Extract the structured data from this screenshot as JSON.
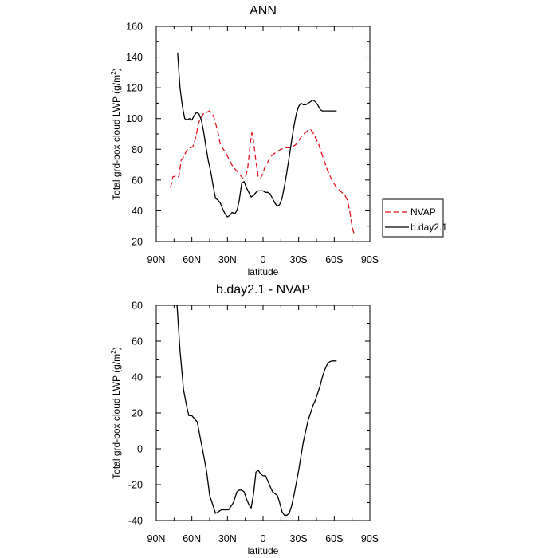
{
  "chart_data": [
    {
      "type": "line",
      "title": "ANN",
      "xlabel": "latitude",
      "ylabel": "Total grd-box cloud LWP (g/m",
      "ylabel_sup": "2",
      "ylabel_end": ")",
      "xlim": [
        90,
        -90
      ],
      "ylim": [
        20,
        160
      ],
      "xticks": [
        {
          "value": 90,
          "label": "90N"
        },
        {
          "value": 60,
          "label": "60N"
        },
        {
          "value": 30,
          "label": "30N"
        },
        {
          "value": 0,
          "label": "0"
        },
        {
          "value": -30,
          "label": "30S"
        },
        {
          "value": -60,
          "label": "60S"
        },
        {
          "value": -90,
          "label": "90S"
        }
      ],
      "yticks": [
        20,
        40,
        60,
        80,
        100,
        120,
        140,
        160
      ],
      "grid": false,
      "legend_position": "right",
      "series": [
        {
          "name": "NVAP",
          "color": "#e8141e",
          "dash": "dashed",
          "x": [
            78,
            76,
            73,
            71,
            69,
            67,
            65,
            63,
            61,
            59,
            56.6,
            54.5,
            52.6,
            50.5,
            47.5,
            45,
            42,
            40,
            38,
            36,
            33.5,
            31.5,
            29,
            25,
            22,
            19,
            17,
            15,
            13,
            11,
            9.5,
            8,
            6,
            4,
            2,
            0,
            -1.4,
            -3.6,
            -6,
            -9,
            -11,
            -13,
            -15,
            -19,
            -24,
            -27.5,
            -30,
            -32,
            -34,
            -36,
            -37.5,
            -40,
            -42,
            -44.5,
            -47,
            -50,
            -54,
            -58,
            -62,
            -65,
            -69,
            -71,
            -73,
            -75,
            -77
          ],
          "y": [
            55,
            62,
            63,
            62,
            73,
            75,
            78,
            81,
            81,
            82,
            88,
            97,
            100,
            103,
            104,
            105,
            102,
            97,
            91,
            83,
            80,
            78,
            74,
            68,
            66,
            63,
            61,
            62,
            67,
            82,
            91,
            85,
            72,
            62,
            61,
            65,
            68,
            71,
            75,
            77,
            78,
            79,
            80,
            81,
            81,
            83,
            85,
            88,
            90,
            91,
            92,
            93,
            91,
            87,
            83,
            76,
            67,
            60,
            55,
            53,
            50,
            47,
            40,
            30,
            24
          ]
        },
        {
          "name": "b.day2.1",
          "color": "#000000",
          "dash": "solid",
          "x": [
            72,
            70,
            68,
            66,
            64,
            62,
            60,
            58,
            56,
            54,
            52,
            50,
            48,
            46,
            44,
            42,
            40,
            38,
            36,
            34,
            32,
            30,
            28,
            26,
            24,
            22,
            20,
            18,
            16,
            14,
            12,
            10,
            8,
            6,
            4,
            2,
            0,
            -2,
            -4,
            -6,
            -8,
            -10,
            -12,
            -14,
            -16,
            -18,
            -20,
            -22,
            -24,
            -26,
            -28,
            -30,
            -32,
            -34,
            -36,
            -38,
            -40,
            -42,
            -44,
            -46,
            -48,
            -50,
            -52,
            -54,
            -56,
            -58,
            -60,
            -62
          ],
          "y": [
            143,
            120,
            108,
            100,
            99,
            100,
            99,
            102,
            104,
            103,
            99,
            91,
            81,
            72,
            65,
            56,
            48,
            47,
            45,
            41,
            38,
            36,
            37,
            39,
            38,
            40,
            47,
            58,
            59,
            55,
            52,
            49,
            50,
            52,
            53,
            53,
            53,
            52,
            52,
            51,
            48,
            45,
            43,
            44,
            48,
            56,
            65,
            75,
            85,
            95,
            103,
            108,
            110,
            109,
            109,
            110,
            111,
            112,
            111,
            109,
            106,
            105,
            105,
            105,
            105,
            105,
            105,
            105
          ]
        }
      ]
    },
    {
      "type": "line",
      "title": "b.day2.1 - NVAP",
      "xlabel": "latitude",
      "ylabel": "Total grd-box cloud LWP (g/m",
      "ylabel_sup": "2",
      "ylabel_end": ")",
      "xlim": [
        90,
        -90
      ],
      "ylim": [
        -40,
        80
      ],
      "xticks": [
        {
          "value": 90,
          "label": "90N"
        },
        {
          "value": 60,
          "label": "60N"
        },
        {
          "value": 30,
          "label": "30N"
        },
        {
          "value": 0,
          "label": "0"
        },
        {
          "value": -30,
          "label": "30S"
        },
        {
          "value": -60,
          "label": "60S"
        },
        {
          "value": -90,
          "label": "90S"
        }
      ],
      "yticks": [
        -40,
        -20,
        0,
        20,
        40,
        60,
        80
      ],
      "grid": false,
      "series": [
        {
          "color": "#000000",
          "dash": "solid",
          "x": [
            72.5,
            70,
            67,
            64.5,
            62.5,
            60,
            58,
            55.5,
            52.6,
            50,
            47.5,
            45,
            42,
            40,
            37.5,
            35,
            32,
            29,
            27,
            25,
            22,
            20,
            18,
            16,
            14,
            12,
            10,
            8,
            6,
            4,
            2,
            0,
            -2,
            -4,
            -6,
            -8,
            -10,
            -12,
            -14,
            -16,
            -18,
            -20,
            -22,
            -24,
            -26,
            -28,
            -30,
            -32,
            -34,
            -36,
            -38,
            -40,
            -42,
            -44,
            -46,
            -48,
            -50,
            -52,
            -54,
            -56,
            -58,
            -60,
            -62
          ],
          "y": [
            80,
            55,
            33,
            24,
            18.5,
            18.5,
            17,
            15,
            5,
            -4,
            -13,
            -26,
            -32,
            -36,
            -35,
            -34,
            -34,
            -34,
            -32,
            -30,
            -24,
            -23,
            -23,
            -24,
            -28,
            -31,
            -33,
            -25,
            -13,
            -12,
            -14,
            -15,
            -15,
            -18,
            -21,
            -24,
            -25,
            -26,
            -30,
            -35,
            -37,
            -37,
            -36,
            -32,
            -26,
            -19,
            -12,
            -4,
            4,
            10,
            16,
            20,
            24,
            27,
            31,
            35,
            40,
            44,
            47,
            48.5,
            49,
            49,
            49
          ]
        }
      ]
    }
  ]
}
